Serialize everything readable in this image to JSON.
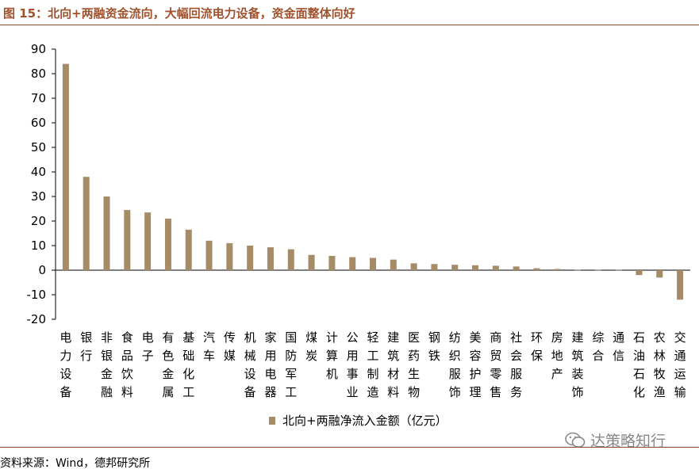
{
  "title": "图 15：北向+两融资金流向，大幅回流电力设备，资金面整体向好",
  "source": "资料来源：Wind，德邦研究所",
  "watermark": "达策略知行",
  "colors": {
    "bar": "#a58b66",
    "title": "#a0522d",
    "rule": "#8b4a2b"
  },
  "chart_data": {
    "type": "bar",
    "categories": [
      "电力设备",
      "银行",
      "非银金融",
      "食品饮料",
      "电子",
      "有色金属",
      "基础化工",
      "汽车",
      "传媒",
      "机械设备",
      "家用电器",
      "国防军工",
      "煤炭",
      "计算机",
      "公用事业",
      "轻工制造",
      "建筑材料",
      "医药生物",
      "钢铁",
      "纺织服饰",
      "美容护理",
      "商贸零售",
      "社会服务",
      "环保",
      "房地产",
      "建筑装饰",
      "综合",
      "通信",
      "石油石化",
      "农林牧渔",
      "交通运输"
    ],
    "series": [
      {
        "name": "北向+两融净流入金额（亿元）",
        "values": [
          84,
          38,
          30,
          24.5,
          23.5,
          21,
          16.5,
          12,
          11,
          10,
          9.3,
          8.5,
          6.2,
          5.8,
          5.3,
          5,
          4.3,
          2.8,
          2.5,
          2.2,
          2,
          1.8,
          1.5,
          0.8,
          0.5,
          0.1,
          0.1,
          0.1,
          -2,
          -3,
          -12
        ]
      }
    ],
    "ylim": [
      -20,
      90
    ],
    "yticks": [
      -20,
      -10,
      0,
      10,
      20,
      30,
      40,
      50,
      60,
      70,
      80,
      90
    ],
    "xlabel": "",
    "ylabel": "",
    "legend_position": "bottom",
    "grid": false
  }
}
